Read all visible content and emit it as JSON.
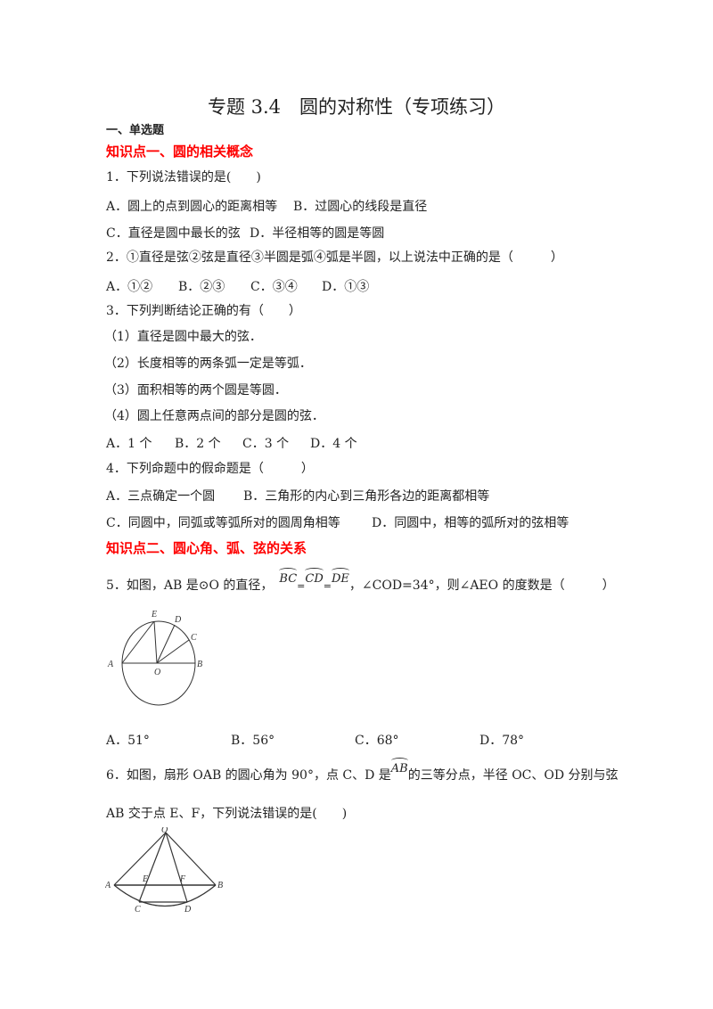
{
  "title": "专题 3.4　圆的对称性（专项练习）",
  "section": "一、单选题",
  "kp1": "知识点一、圆的相关概念",
  "q1": {
    "stem": "1．下列说法错误的是(　　)",
    "A": "A．圆上的点到圆心的距离相等",
    "B": "B．过圆心的线段是直径",
    "C": "C．直径是圆中最长的弦",
    "D": "D．半径相等的圆是等圆"
  },
  "q2": {
    "stem": "2．①直径是弦②弦是直径③半圆是弧④弧是半圆，以上说法中正确的是（　　　）",
    "A": "A．①②",
    "B": "B．②③",
    "C": "C．③④",
    "D": "D．①③"
  },
  "q3": {
    "stem": "3．下列判断结论正确的有（　　）",
    "s1": "（1）直径是圆中最大的弦．",
    "s2": "（2）长度相等的两条弧一定是等弧．",
    "s3": "（3）面积相等的两个圆是等圆．",
    "s4": "（4）圆上任意两点间的部分是圆的弦．",
    "A": "A．1 个",
    "B": "B．2 个",
    "C": "C．3 个",
    "D": "D．4 个"
  },
  "q4": {
    "stem": "4．下列命题中的假命题是（　　　）",
    "A": "A．三点确定一个圆",
    "B": "B．三角形的内心到三角形各边的距离都相等",
    "C": "C．同圆中，同弧或等弧所对的圆周角相等",
    "D": "D．同圆中，相等的弧所对的弦相等"
  },
  "kp2": "知识点二、圆心角、弧、弦的关系",
  "q5": {
    "pre": "5．如图，AB 是⊙O 的直径，",
    "arc1": "BC",
    "eq": "=",
    "arc2": "CD",
    "arc3": "DE",
    "post": "，∠COD=34°，则∠AEO 的度数是（　　　）",
    "labels": {
      "A": "A",
      "B": "B",
      "C": "C",
      "D": "D",
      "E": "E",
      "O": "O"
    },
    "A": "A．51°",
    "B": "B．56°",
    "C": "C．68°",
    "D": "D．78°"
  },
  "q6": {
    "pre": "6．如图，扇形 OAB 的圆心角为 90°，点 C、D 是",
    "arc": "AB",
    "post": "的三等分点，半径 OC、OD 分别与弦",
    "line2": "AB 交于点 E、F，下列说法错误的是(　　)",
    "labels": {
      "O": "O",
      "A": "A",
      "B": "B",
      "C": "C",
      "D": "D",
      "E": "E",
      "F": "F"
    }
  }
}
